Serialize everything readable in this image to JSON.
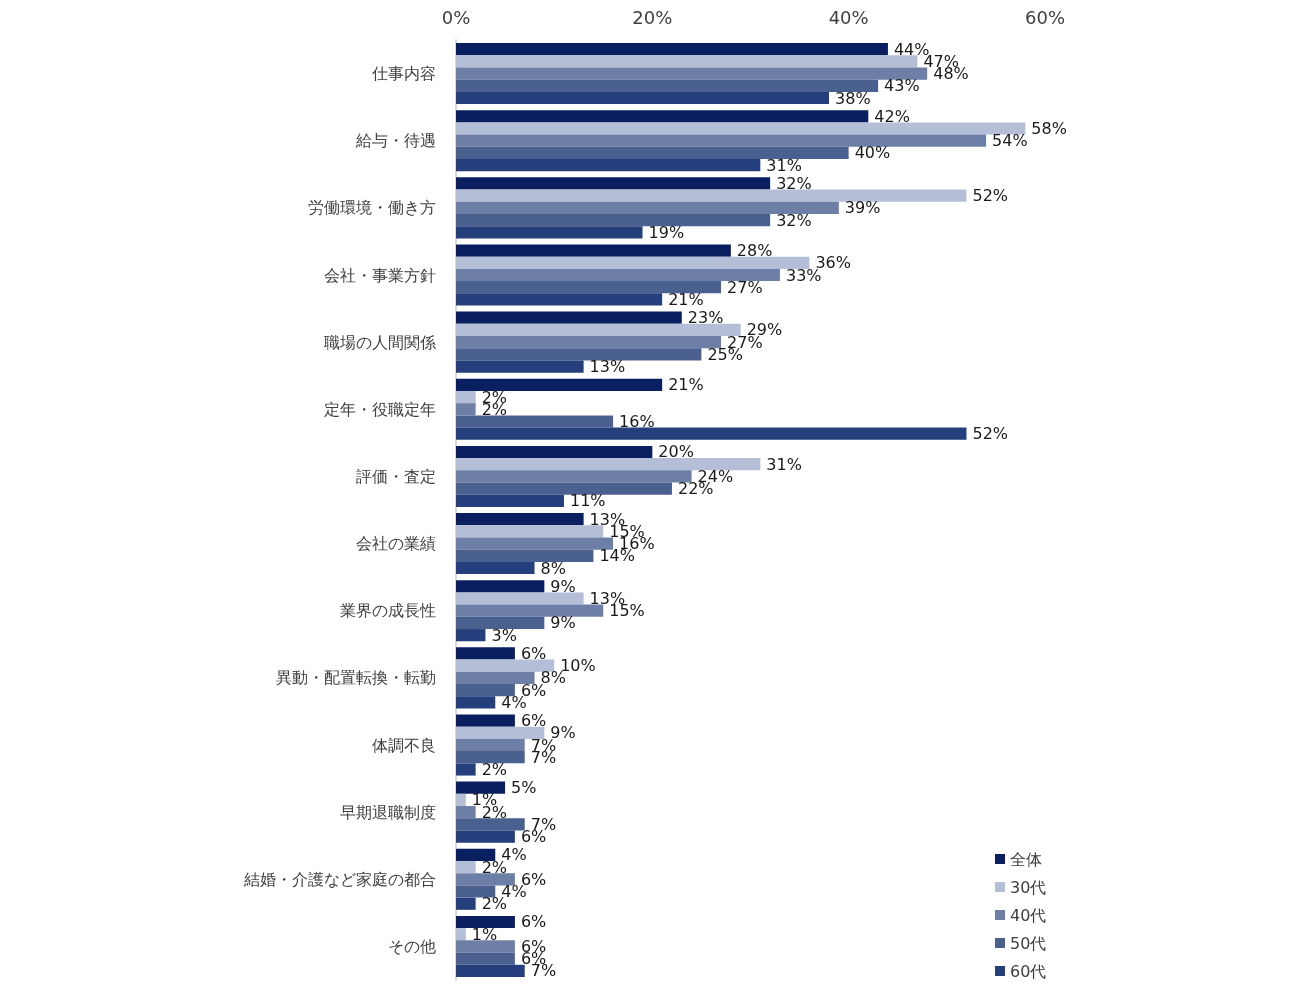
{
  "chart_data": {
    "type": "bar",
    "orientation": "horizontal",
    "categories": [
      "仕事内容",
      "給与・待遇",
      "労働環境・働き方",
      "会社・事業方針",
      "職場の人間関係",
      "定年・役職定年",
      "評価・査定",
      "会社の業績",
      "業界の成長性",
      "異動・配置転換・転勤",
      "体調不良",
      "早期退職制度",
      "結婚・介護など家庭の都合",
      "その他"
    ],
    "series": [
      {
        "name": "全体",
        "color": "#0a1f5f",
        "values": [
          44,
          42,
          32,
          28,
          23,
          21,
          20,
          13,
          9,
          6,
          6,
          5,
          4,
          6
        ],
        "value_labels": [
          "44%",
          "42%",
          "32%",
          "28%",
          "23%",
          "21%",
          "20%",
          "13%",
          "9%",
          "6%",
          "6%",
          "5%",
          "4%",
          "6%"
        ]
      },
      {
        "name": "30代",
        "color": "#b4bed6",
        "values": [
          47,
          58,
          52,
          36,
          29,
          2,
          31,
          15,
          13,
          10,
          9,
          1,
          2,
          1
        ],
        "value_labels": [
          "47%",
          "58%",
          "52%",
          "36%",
          "29%",
          "2%",
          "31%",
          "15%",
          "13%",
          "10%",
          "9%",
          "1%",
          "2%",
          "1%"
        ]
      },
      {
        "name": "40代",
        "color": "#6e7fa7",
        "values": [
          48,
          54,
          39,
          33,
          27,
          2,
          24,
          16,
          15,
          8,
          7,
          2,
          6,
          6
        ],
        "value_labels": [
          "48%",
          "54%",
          "39%",
          "33%",
          "27%",
          "2%",
          "24%",
          "16%",
          "15%",
          "8%",
          "7%",
          "2%",
          "6%",
          "6%"
        ]
      },
      {
        "name": "50代",
        "color": "#4a6190",
        "values": [
          43,
          40,
          32,
          27,
          25,
          16,
          22,
          14,
          9,
          6,
          7,
          7,
          4,
          6
        ],
        "value_labels": [
          "43%",
          "40%",
          "32%",
          "27%",
          "25%",
          "16%",
          "22%",
          "14%",
          "9%",
          "6%",
          "7%",
          "7%",
          "4%",
          "6%"
        ]
      },
      {
        "name": "60代",
        "color": "#243f7b",
        "values": [
          38,
          31,
          19,
          21,
          13,
          52,
          11,
          8,
          3,
          4,
          2,
          6,
          2,
          7
        ],
        "value_labels": [
          "38%",
          "31%",
          "19%",
          "21%",
          "13%",
          "52%",
          "11%",
          "8%",
          "3%",
          "4%",
          "2%",
          "6%",
          "2%",
          "7%"
        ]
      }
    ],
    "xlim": [
      0,
      60
    ],
    "xticks": [
      {
        "value": 0,
        "label": "0%"
      },
      {
        "value": 20,
        "label": "20%"
      },
      {
        "value": 40,
        "label": "40%"
      },
      {
        "value": 60,
        "label": "60%"
      }
    ],
    "grid": false,
    "legend": "bottom right"
  }
}
